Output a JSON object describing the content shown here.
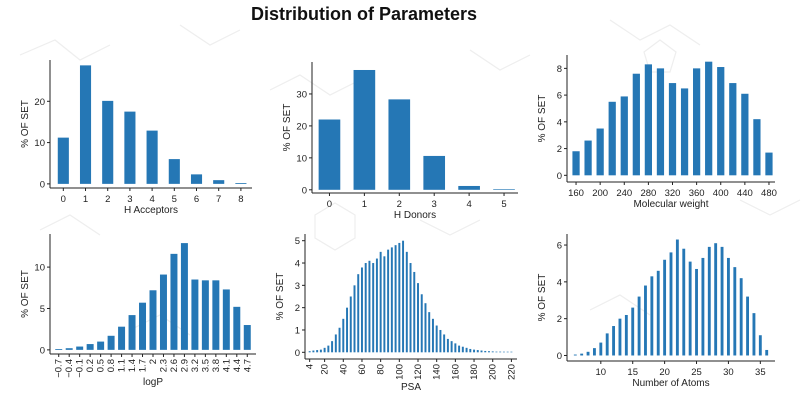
{
  "page": {
    "title": "Distribution of Parameters",
    "bar_color": "#2577b5"
  },
  "chart_data": [
    {
      "type": "bar",
      "xlabel": "H Acceptors",
      "ylabel": "% OF SET",
      "categories": [
        0,
        1,
        2,
        3,
        4,
        5,
        6,
        7,
        8
      ],
      "values": [
        11.2,
        28.7,
        20.1,
        17.5,
        12.9,
        6.0,
        2.3,
        0.9,
        0.2
      ],
      "xlim": [
        -0.6,
        8.5
      ],
      "ylim": [
        -1,
        30
      ],
      "xticks": [
        0,
        1,
        2,
        3,
        4,
        5,
        6,
        7,
        8
      ],
      "yticks": [
        0,
        10,
        20
      ],
      "bar_width": 0.5,
      "x_rotate": false,
      "grid": false
    },
    {
      "type": "bar",
      "xlabel": "H Donors",
      "ylabel": "% OF SET",
      "categories": [
        0,
        1,
        2,
        3,
        4,
        5
      ],
      "values": [
        22.0,
        37.5,
        28.3,
        10.6,
        1.2,
        0.2
      ],
      "xlim": [
        -0.5,
        5.4
      ],
      "ylim": [
        -1,
        40
      ],
      "xticks": [
        0,
        1,
        2,
        3,
        4,
        5
      ],
      "yticks": [
        0,
        10,
        20,
        30
      ],
      "bar_width": 0.62,
      "x_rotate": false,
      "grid": false
    },
    {
      "type": "bar",
      "xlabel": "Molecular weight",
      "ylabel": "% OF SET",
      "categories": [
        160,
        180,
        200,
        220,
        240,
        260,
        280,
        300,
        320,
        340,
        360,
        380,
        400,
        420,
        440,
        460,
        480
      ],
      "values": [
        1.8,
        2.6,
        3.5,
        5.5,
        5.9,
        7.6,
        8.3,
        8.0,
        6.9,
        6.5,
        8.0,
        8.5,
        8.1,
        6.9,
        6.1,
        4.2,
        1.7
      ],
      "xlim": [
        145,
        490
      ],
      "ylim": [
        -0.5,
        9
      ],
      "xticks": [
        160,
        200,
        240,
        280,
        320,
        360,
        400,
        440,
        480
      ],
      "yticks": [
        0,
        2,
        4,
        6,
        8
      ],
      "bar_width": 12,
      "x_rotate": false,
      "grid": false
    },
    {
      "type": "bar",
      "xlabel": "logP",
      "ylabel": "% OF SET",
      "categories": [
        -0.7,
        -0.4,
        -0.1,
        0.2,
        0.5,
        0.8,
        1.1,
        1.4,
        1.7,
        2.0,
        2.3,
        2.6,
        2.9,
        3.2,
        3.5,
        3.8,
        4.1,
        4.4,
        4.7
      ],
      "categories_text": [
        "-0.7",
        "-0.4",
        "-0.1",
        "0.2",
        "0.5",
        "0.8",
        "1.1",
        "1.4",
        "1.7",
        "2",
        "2.3",
        "2.6",
        "2.9",
        "3.2",
        "3.5",
        "3.8",
        "4.1",
        "4.4",
        "4.7"
      ],
      "values": [
        0.1,
        0.2,
        0.4,
        0.7,
        1.0,
        1.7,
        2.8,
        4.2,
        5.7,
        7.2,
        9.1,
        11.6,
        12.9,
        8.5,
        8.4,
        8.4,
        7.3,
        5.2,
        3.0
      ],
      "xlim": [
        -0.95,
        4.95
      ],
      "ylim": [
        -0.5,
        14
      ],
      "xticks": [
        -0.7,
        -0.4,
        -0.1,
        0.2,
        0.5,
        0.8,
        1.1,
        1.4,
        1.7,
        2.0,
        2.3,
        2.6,
        2.9,
        3.2,
        3.5,
        3.8,
        4.1,
        4.4,
        4.7
      ],
      "xtick_labels": [
        "−0.7",
        "−0.4",
        "−0.1",
        "0.2",
        "0.5",
        "0.8",
        "1.1",
        "1.4",
        "1.7",
        "2",
        "2.3",
        "2.6",
        "2.9",
        "3.2",
        "3.5",
        "3.8",
        "4.1",
        "4.4",
        "4.7"
      ],
      "yticks": [
        0,
        5,
        10
      ],
      "bar_width": 0.2,
      "x_rotate": true,
      "grid": false
    },
    {
      "type": "bar",
      "xlabel": "PSA",
      "ylabel": "% OF SET",
      "categories": [
        4,
        8,
        12,
        16,
        20,
        24,
        28,
        32,
        36,
        40,
        44,
        48,
        52,
        56,
        60,
        64,
        68,
        72,
        76,
        80,
        84,
        88,
        92,
        96,
        100,
        104,
        108,
        112,
        116,
        120,
        124,
        128,
        132,
        136,
        140,
        144,
        148,
        152,
        156,
        160,
        164,
        168,
        172,
        176,
        180,
        184,
        188,
        192,
        196,
        200,
        204,
        208,
        212,
        216,
        220
      ],
      "values": [
        0.05,
        0.08,
        0.1,
        0.12,
        0.2,
        0.3,
        0.5,
        0.8,
        1.1,
        1.5,
        2.0,
        2.5,
        3.0,
        3.5,
        3.8,
        4.0,
        4.1,
        4.0,
        4.2,
        4.5,
        4.3,
        4.6,
        4.7,
        4.8,
        4.9,
        5.0,
        4.5,
        4.0,
        3.6,
        3.1,
        2.6,
        2.2,
        1.8,
        1.5,
        1.2,
        1.0,
        0.8,
        0.6,
        0.5,
        0.4,
        0.3,
        0.25,
        0.2,
        0.15,
        0.12,
        0.1,
        0.08,
        0.06,
        0.05,
        0.04,
        0.03,
        0.03,
        0.02,
        0.02,
        0.01
      ],
      "xlim": [
        -1,
        226
      ],
      "ylim": [
        -0.3,
        5.3
      ],
      "xticks": [
        4,
        20,
        40,
        60,
        80,
        100,
        120,
        140,
        160,
        180,
        200,
        220
      ],
      "yticks": [
        0,
        1,
        2,
        3,
        4,
        5
      ],
      "bar_width": 2.1,
      "x_rotate": true,
      "grid": false
    },
    {
      "type": "bar",
      "xlabel": "Number of Atoms",
      "ylabel": "% OF SET",
      "categories": [
        6,
        7,
        8,
        9,
        10,
        11,
        12,
        13,
        14,
        15,
        16,
        17,
        18,
        19,
        20,
        21,
        22,
        23,
        24,
        25,
        26,
        27,
        28,
        29,
        30,
        31,
        32,
        33,
        34,
        35,
        36
      ],
      "values": [
        0.05,
        0.1,
        0.2,
        0.4,
        0.7,
        1.2,
        1.6,
        2.0,
        2.2,
        2.6,
        3.2,
        3.8,
        4.3,
        4.6,
        5.2,
        5.6,
        6.3,
        5.8,
        5.1,
        4.7,
        5.3,
        5.9,
        6.1,
        5.9,
        5.3,
        4.8,
        4.2,
        3.2,
        2.3,
        1.1,
        0.3
      ],
      "xlim": [
        4.7,
        37.3
      ],
      "ylim": [
        -0.3,
        6.6
      ],
      "xticks": [
        10,
        15,
        20,
        25,
        30,
        35
      ],
      "yticks": [
        0,
        2,
        4,
        6
      ],
      "bar_width": 0.45,
      "x_rotate": false,
      "grid": false
    }
  ]
}
